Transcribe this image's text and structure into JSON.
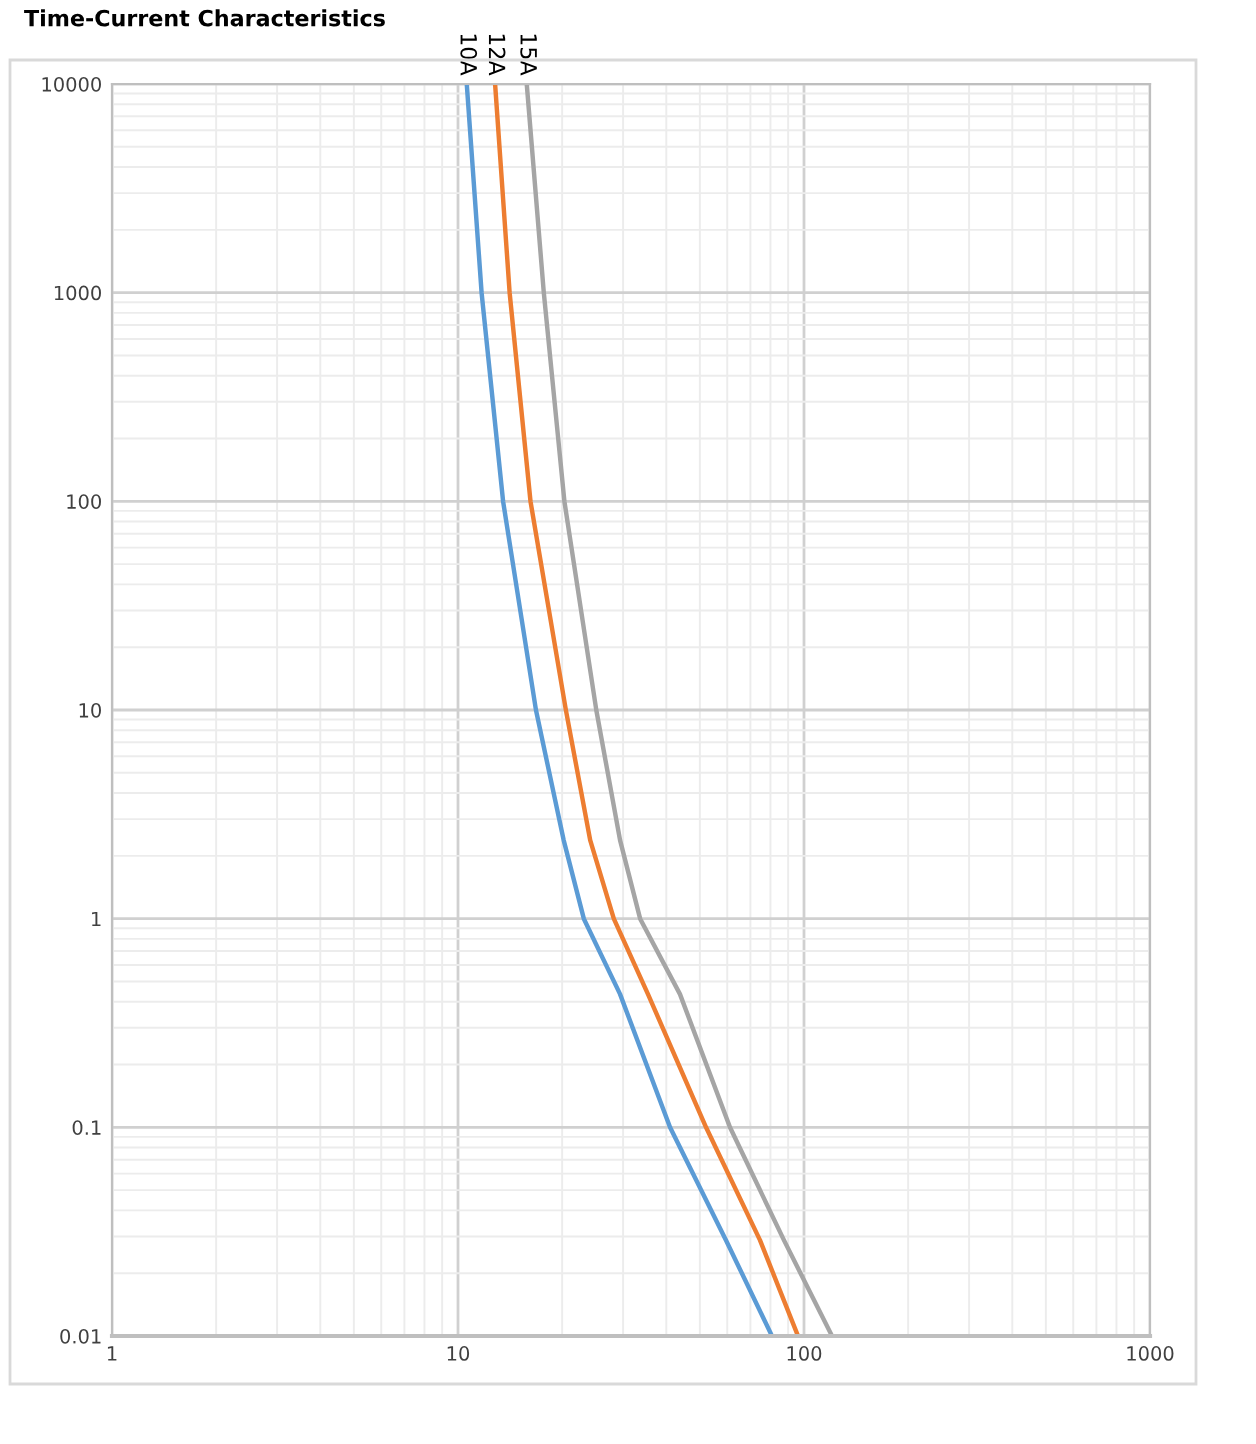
{
  "chart_data": {
    "type": "line",
    "title": "Time-Current Characteristics",
    "series": [
      {
        "name": "10A",
        "color": "#5b9bd5",
        "x": [
          10.6,
          11.7,
          13.5,
          16.8,
          20.2,
          23.1,
          29.4,
          41.0,
          59.5,
          80.8
        ],
        "values": [
          10000,
          1000,
          100,
          10,
          2.38,
          1,
          0.435,
          0.1,
          0.0288,
          0.01
        ]
      },
      {
        "name": "12A",
        "color": "#ed7d31",
        "x": [
          12.8,
          14.1,
          16.2,
          20.5,
          24.1,
          28.2,
          35.4,
          52.1,
          74.6,
          96.1
        ],
        "values": [
          10000,
          1000,
          100,
          10,
          2.38,
          1,
          0.435,
          0.1,
          0.0288,
          0.01
        ]
      },
      {
        "name": "15A",
        "color": "#a5a5a5",
        "x": [
          15.8,
          17.7,
          20.3,
          25.1,
          29.4,
          33.6,
          43.8,
          61.1,
          87.5,
          120.5
        ],
        "values": [
          10000,
          1000,
          100,
          10,
          2.38,
          1,
          0.435,
          0.1,
          0.0288,
          0.01
        ]
      }
    ],
    "log": "xy",
    "xlim": [
      1,
      1000
    ],
    "ylim": [
      0.01,
      10000
    ],
    "xticks": [
      1,
      10,
      100,
      1000
    ],
    "yticks": [
      0.01,
      0.1,
      1,
      10,
      100,
      1000,
      10000
    ],
    "grid": true,
    "legend": false,
    "marker": "none",
    "line_style": "solid"
  }
}
